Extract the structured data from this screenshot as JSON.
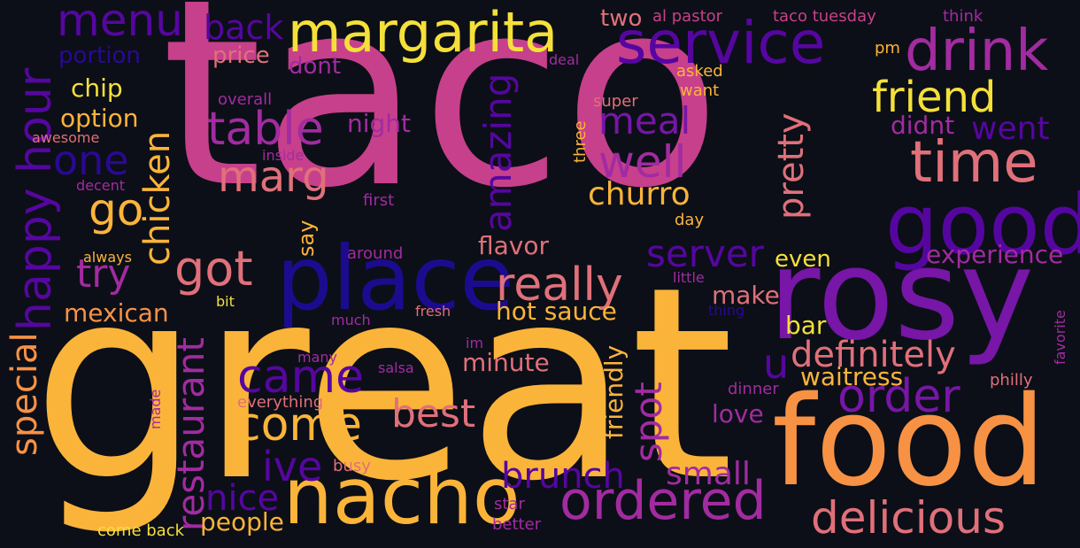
{
  "palette": {
    "background": "#0c0f17",
    "yellow": "#f5e03a",
    "gold": "#fbb43a",
    "orange": "#f79245",
    "salmon": "#e0707a",
    "pink": "#c7408b",
    "magenta": "#a22ba1",
    "purple": "#7716a7",
    "violet": "#5606a0",
    "indigo": "#2a0895",
    "blue": "#1b0c8f"
  },
  "words": [
    {
      "text": "taco",
      "color": "pink"
    },
    {
      "text": "great",
      "color": "gold"
    },
    {
      "text": "rosy",
      "color": "purple"
    },
    {
      "text": "food",
      "color": "orange"
    },
    {
      "text": "place",
      "color": "blue"
    },
    {
      "text": "nacho",
      "color": "gold"
    },
    {
      "text": "good",
      "color": "violet"
    },
    {
      "text": "service",
      "color": "violet"
    },
    {
      "text": "margarita",
      "color": "yellow"
    },
    {
      "text": "drink",
      "color": "magenta"
    },
    {
      "text": "time",
      "color": "salmon"
    },
    {
      "text": "friend",
      "color": "yellow"
    },
    {
      "text": "menu",
      "color": "violet"
    },
    {
      "text": "table",
      "color": "magenta"
    },
    {
      "text": "marg",
      "color": "salmon"
    },
    {
      "text": "well",
      "color": "magenta"
    },
    {
      "text": "got",
      "color": "salmon"
    },
    {
      "text": "really",
      "color": "salmon"
    },
    {
      "text": "ordered",
      "color": "magenta"
    },
    {
      "text": "order",
      "color": "purple"
    },
    {
      "text": "delicious",
      "color": "salmon"
    },
    {
      "text": "come",
      "color": "gold"
    },
    {
      "text": "came",
      "color": "violet"
    },
    {
      "text": "definitely",
      "color": "salmon"
    },
    {
      "text": "best",
      "color": "salmon"
    },
    {
      "text": "happy hour",
      "color": "violet"
    },
    {
      "text": "restaurant",
      "color": "magenta"
    },
    {
      "text": "amazing",
      "color": "violet"
    },
    {
      "text": "chicken",
      "color": "gold"
    },
    {
      "text": "one",
      "color": "indigo"
    },
    {
      "text": "go",
      "color": "gold"
    },
    {
      "text": "try",
      "color": "magenta"
    },
    {
      "text": "server",
      "color": "violet"
    },
    {
      "text": "meal",
      "color": "purple"
    },
    {
      "text": "churro",
      "color": "gold"
    },
    {
      "text": "pretty",
      "color": "salmon"
    },
    {
      "text": "went",
      "color": "violet"
    },
    {
      "text": "u",
      "color": "violet"
    },
    {
      "text": "back",
      "color": "violet"
    },
    {
      "text": "ive",
      "color": "violet"
    },
    {
      "text": "brunch",
      "color": "violet"
    },
    {
      "text": "small",
      "color": "magenta"
    },
    {
      "text": "spot",
      "color": "magenta"
    },
    {
      "text": "nice",
      "color": "violet"
    },
    {
      "text": "special",
      "color": "orange"
    },
    {
      "text": "hot sauce",
      "color": "gold"
    },
    {
      "text": "experience",
      "color": "magenta"
    },
    {
      "text": "waitress",
      "color": "gold"
    },
    {
      "text": "night",
      "color": "magenta"
    },
    {
      "text": "minute",
      "color": "salmon"
    },
    {
      "text": "flavor",
      "color": "salmon"
    },
    {
      "text": "mexican",
      "color": "orange"
    },
    {
      "text": "option",
      "color": "gold"
    },
    {
      "text": "chip",
      "color": "yellow"
    },
    {
      "text": "portion",
      "color": "indigo"
    },
    {
      "text": "people",
      "color": "gold"
    },
    {
      "text": "friendly",
      "color": "gold"
    },
    {
      "text": "make",
      "color": "salmon"
    },
    {
      "text": "love",
      "color": "magenta"
    },
    {
      "text": "didnt",
      "color": "magenta"
    },
    {
      "text": "even",
      "color": "yellow"
    },
    {
      "text": "bar",
      "color": "yellow"
    },
    {
      "text": "price",
      "color": "salmon"
    },
    {
      "text": "dont",
      "color": "magenta"
    },
    {
      "text": "two",
      "color": "salmon"
    },
    {
      "text": "say",
      "color": "gold"
    },
    {
      "text": "al pastor",
      "color": "pink"
    },
    {
      "text": "taco tuesday",
      "color": "pink"
    },
    {
      "text": "think",
      "color": "magenta"
    },
    {
      "text": "deal",
      "color": "magenta"
    },
    {
      "text": "pm",
      "color": "gold"
    },
    {
      "text": "asked",
      "color": "gold"
    },
    {
      "text": "want",
      "color": "gold"
    },
    {
      "text": "super",
      "color": "salmon"
    },
    {
      "text": "three",
      "color": "gold"
    },
    {
      "text": "overall",
      "color": "magenta"
    },
    {
      "text": "awesome",
      "color": "salmon"
    },
    {
      "text": "inside",
      "color": "magenta"
    },
    {
      "text": "decent",
      "color": "magenta"
    },
    {
      "text": "first",
      "color": "magenta"
    },
    {
      "text": "day",
      "color": "gold"
    },
    {
      "text": "always",
      "color": "gold"
    },
    {
      "text": "around",
      "color": "magenta"
    },
    {
      "text": "little",
      "color": "magenta"
    },
    {
      "text": "bit",
      "color": "yellow"
    },
    {
      "text": "fresh",
      "color": "salmon"
    },
    {
      "text": "much",
      "color": "magenta"
    },
    {
      "text": "thing",
      "color": "indigo"
    },
    {
      "text": "im",
      "color": "magenta"
    },
    {
      "text": "many",
      "color": "magenta"
    },
    {
      "text": "salsa",
      "color": "magenta"
    },
    {
      "text": "made",
      "color": "magenta"
    },
    {
      "text": "everything",
      "color": "salmon"
    },
    {
      "text": "dinner",
      "color": "magenta"
    },
    {
      "text": "philly",
      "color": "salmon"
    },
    {
      "text": "favorite",
      "color": "magenta"
    },
    {
      "text": "busy",
      "color": "salmon"
    },
    {
      "text": "star",
      "color": "magenta"
    },
    {
      "text": "better",
      "color": "magenta"
    },
    {
      "text": "come back",
      "color": "yellow"
    }
  ]
}
